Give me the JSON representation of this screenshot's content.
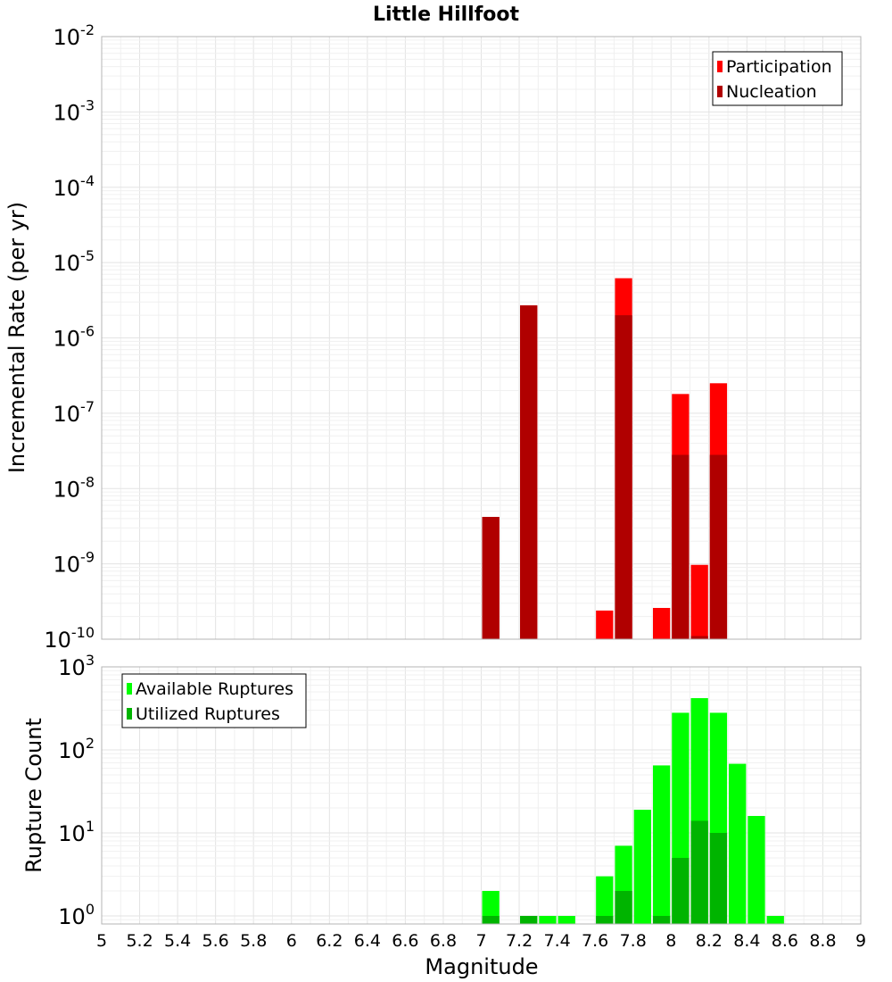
{
  "chart_data": {
    "type": "bar",
    "title": "Little Hillfoot",
    "xlabel": "Magnitude",
    "xlim": [
      5,
      9
    ],
    "bin_width": 0.1,
    "xticks": [
      5,
      5.2,
      5.4,
      5.6,
      5.8,
      6,
      6.2,
      6.4,
      6.6,
      6.8,
      7,
      7.2,
      7.4,
      7.6,
      7.8,
      8,
      8.2,
      8.4,
      8.6,
      8.8,
      9
    ],
    "xtick_labels": [
      "5",
      "5.2",
      "5.4",
      "5.6",
      "5.8",
      "6",
      "6.2",
      "6.4",
      "6.6",
      "6.8",
      "7",
      "7.2",
      "7.4",
      "7.6",
      "7.8",
      "8",
      "8.2",
      "8.4",
      "8.6",
      "8.8",
      "9"
    ],
    "grid": true,
    "panels": [
      {
        "id": "rate",
        "ylabel": "Incremental Rate (per yr)",
        "yscale": "log",
        "ylim": [
          1e-10,
          0.01
        ],
        "ytick_exponents": [
          -10,
          -9,
          -8,
          -7,
          -6,
          -5,
          -4,
          -3,
          -2
        ],
        "ytick_base": "10",
        "legend_position": "top-right",
        "series": [
          {
            "name": "Participation",
            "color": "#ff0000",
            "x": [
              7.05,
              7.25,
              7.65,
              7.75,
              7.95,
              8.05,
              8.15,
              8.25
            ],
            "values": [
              4.2e-09,
              2.7e-06,
              2.4e-10,
              6.2e-06,
              2.6e-10,
              1.8e-07,
              9.7e-10,
              2.5e-07
            ]
          },
          {
            "name": "Nucleation",
            "color": "#b00000",
            "x": [
              7.05,
              7.25,
              7.75,
              8.05,
              8.15,
              8.25
            ],
            "values": [
              4.2e-09,
              2.7e-06,
              2e-06,
              2.8e-08,
              1.1e-10,
              2.8e-08
            ]
          }
        ]
      },
      {
        "id": "count",
        "ylabel": "Rupture Count",
        "yscale": "log",
        "ylim": [
          0.8,
          1000
        ],
        "ytick_exponents": [
          0,
          1,
          2,
          3
        ],
        "ytick_base": "10",
        "legend_position": "top-left",
        "series": [
          {
            "name": "Available Ruptures",
            "color": "#00ff00",
            "x": [
              7.05,
              7.25,
              7.35,
              7.45,
              7.65,
              7.75,
              7.85,
              7.95,
              8.05,
              8.15,
              8.25,
              8.35,
              8.45,
              8.55
            ],
            "values": [
              2,
              1,
              1,
              1,
              3,
              7,
              19,
              65,
              280,
              420,
              280,
              68,
              16,
              1
            ]
          },
          {
            "name": "Utilized Ruptures",
            "color": "#00b400",
            "x": [
              7.05,
              7.25,
              7.65,
              7.75,
              7.95,
              8.05,
              8.15,
              8.25
            ],
            "values": [
              1,
              1,
              1,
              2,
              1,
              5,
              14,
              10
            ]
          }
        ]
      }
    ]
  }
}
